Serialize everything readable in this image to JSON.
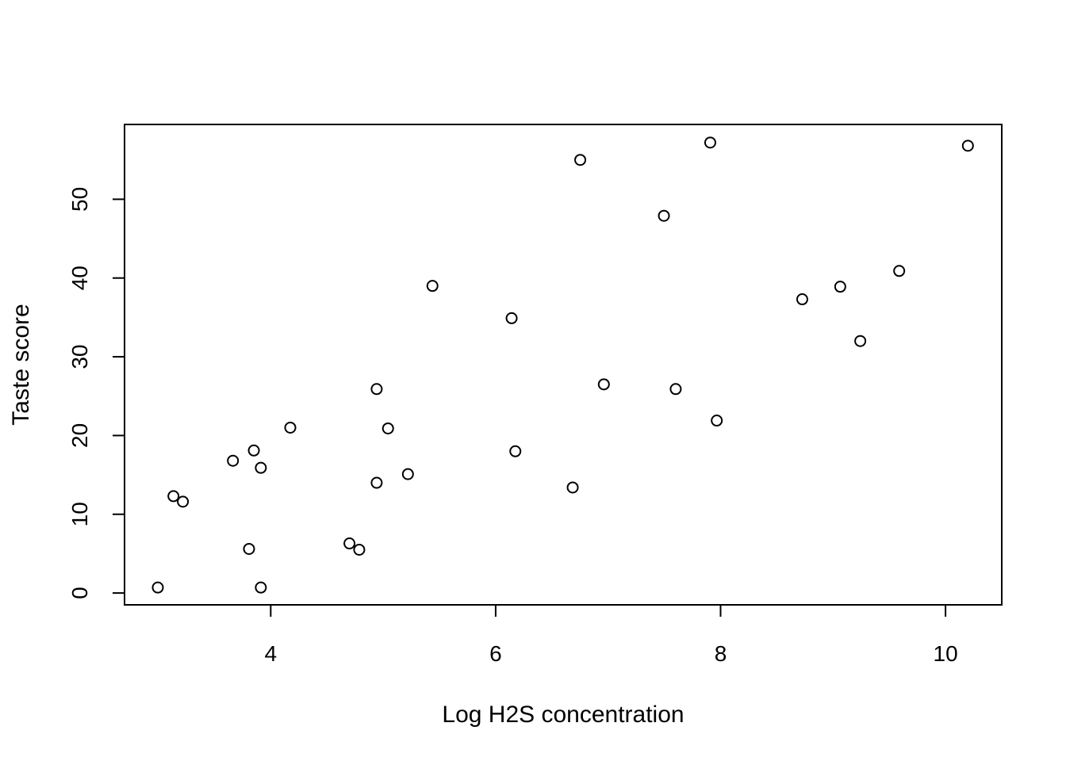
{
  "chart_data": {
    "type": "scatter",
    "title": "",
    "xlabel": "Log H2S concentration",
    "ylabel": "Taste score",
    "xlim": [
      2.7,
      10.5
    ],
    "ylim": [
      -1.5,
      59.5
    ],
    "x_ticks": [
      4,
      6,
      8,
      10
    ],
    "y_ticks": [
      0,
      10,
      20,
      30,
      40,
      50
    ],
    "grid": false,
    "legend": "none",
    "marker": "open-circle",
    "point_color": "#000000",
    "series": [
      {
        "points": [
          {
            "x": 3.135,
            "y": 12.3
          },
          {
            "x": 5.043,
            "y": 20.9
          },
          {
            "x": 5.438,
            "y": 39.0
          },
          {
            "x": 7.496,
            "y": 47.9
          },
          {
            "x": 3.807,
            "y": 5.6
          },
          {
            "x": 7.601,
            "y": 25.9
          },
          {
            "x": 8.726,
            "y": 37.3
          },
          {
            "x": 7.966,
            "y": 21.9
          },
          {
            "x": 3.85,
            "y": 18.1
          },
          {
            "x": 4.174,
            "y": 21.0
          },
          {
            "x": 6.142,
            "y": 34.9
          },
          {
            "x": 7.908,
            "y": 57.2
          },
          {
            "x": 2.996,
            "y": 0.7
          },
          {
            "x": 4.942,
            "y": 25.9
          },
          {
            "x": 5.22,
            "y": 15.1
          },
          {
            "x": 9.242,
            "y": 32.0
          },
          {
            "x": 6.962,
            "y": 26.5
          },
          {
            "x": 3.219,
            "y": 11.6
          },
          {
            "x": 3.912,
            "y": 0.7
          },
          {
            "x": 6.685,
            "y": 13.4
          },
          {
            "x": 3.664,
            "y": 16.8
          },
          {
            "x": 6.752,
            "y": 55.0
          },
          {
            "x": 9.588,
            "y": 40.9
          },
          {
            "x": 10.199,
            "y": 56.8
          },
          {
            "x": 4.787,
            "y": 5.5
          },
          {
            "x": 4.942,
            "y": 14.0
          },
          {
            "x": 4.7,
            "y": 6.3
          },
          {
            "x": 9.064,
            "y": 38.9
          },
          {
            "x": 3.912,
            "y": 15.9
          },
          {
            "x": 6.175,
            "y": 18.0
          }
        ]
      }
    ]
  }
}
